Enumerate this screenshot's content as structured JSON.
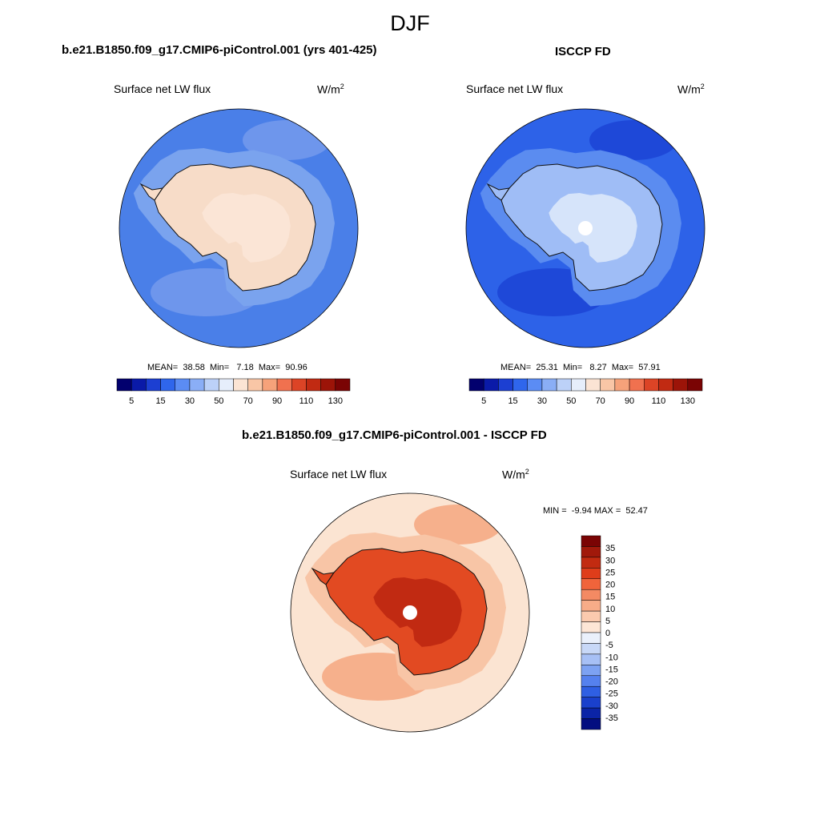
{
  "title": "DJF",
  "panels": [
    {
      "id": "model",
      "title": "b.e21.B1850.f09_g17.CMIP6-piControl.001 (yrs 401-425)",
      "variable": "Surface net LW flux",
      "units": "W/m",
      "units_exp": "2",
      "stats": {
        "mean_label": "MEAN=",
        "mean": "38.58",
        "min_label": "Min=",
        "min": "7.18",
        "max_label": "Max=",
        "max": "90.96"
      }
    },
    {
      "id": "obs",
      "title": "ISCCP FD",
      "variable": "Surface net LW flux",
      "units": "W/m",
      "units_exp": "2",
      "stats": {
        "mean_label": "MEAN=",
        "mean": "25.31",
        "min_label": "Min=",
        "min": "8.27",
        "max_label": "Max=",
        "max": "57.91"
      }
    },
    {
      "id": "diff",
      "title": "b.e21.B1850.f09_g17.CMIP6-piControl.001 - ISCCP FD",
      "variable": "Surface net LW flux",
      "units": "W/m",
      "units_exp": "2",
      "stats": {
        "min_label": "MIN =",
        "min": "-9.94",
        "max_label": "MAX =",
        "max": "52.47"
      }
    }
  ],
  "colorbar_main": {
    "colors": [
      "#02006e",
      "#0a1aa8",
      "#1c3fd2",
      "#2f66ec",
      "#5b8cf4",
      "#8aaef6",
      "#bcd1f8",
      "#e6eefb",
      "#fbe4d4",
      "#f9c6a6",
      "#f6a27a",
      "#f0714f",
      "#dc4426",
      "#c12a12",
      "#9c1408",
      "#7a0404"
    ],
    "tick_labels": [
      "5",
      "15",
      "30",
      "50",
      "70",
      "90",
      "110",
      "130"
    ]
  },
  "colorbar_diff": {
    "colors": [
      "#7a0404",
      "#a1190b",
      "#c22b11",
      "#df3d1a",
      "#f0643b",
      "#f48a63",
      "#f7ac88",
      "#fbcaae",
      "#fde6d6",
      "#eaf0fb",
      "#c8d8f7",
      "#a7c0f5",
      "#7da2f2",
      "#5581ee",
      "#2f5fe3",
      "#1a40cc",
      "#0b24a6",
      "#030d80"
    ],
    "tick_labels": [
      "35",
      "30",
      "25",
      "20",
      "15",
      "10",
      "5",
      "0",
      "-5",
      "-10",
      "-15",
      "-20",
      "-25",
      "-30",
      "-35"
    ]
  },
  "maps": [
    {
      "name": "model-map",
      "ocean_color": "#4a7fe8",
      "inner_ring_color": "#7aa3ee",
      "land_color": "#f7dcc8",
      "land_inner_color": "#fbe5d6",
      "outer_patch_color": "#6e96ec"
    },
    {
      "name": "obs-map",
      "ocean_color": "#2d62e8",
      "inner_ring_color": "#5b8cf0",
      "land_color": "#9fbdf6",
      "land_inner_color": "#d6e4fa",
      "outer_patch_color": "#1e48d8"
    },
    {
      "name": "diff-map",
      "ocean_color": "#fbe4d2",
      "inner_ring_color": "#f8c5a6",
      "land_color": "#e24a22",
      "land_inner_color": "#c12a12",
      "outer_patch_color": "#f6b08c"
    }
  ]
}
